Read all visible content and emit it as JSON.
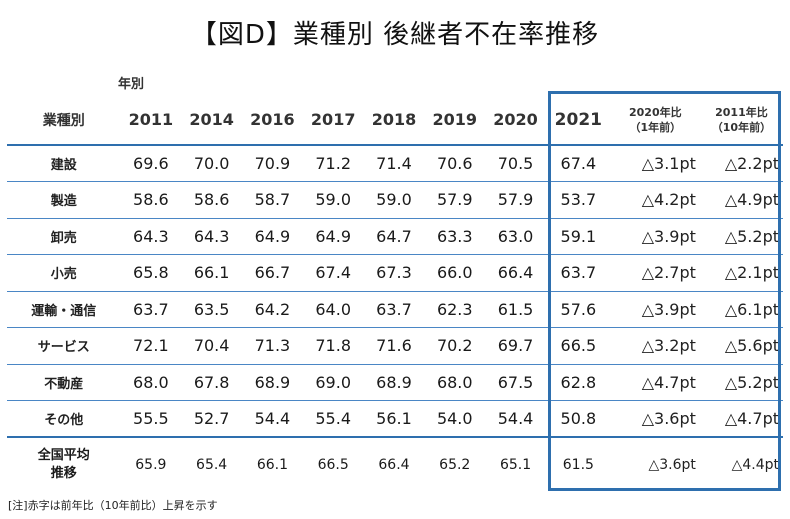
{
  "title": "【図D】業種別 後継者不在率推移",
  "year_label": "年別",
  "header": {
    "industry": "業種別",
    "years": [
      "2011",
      "2014",
      "2016",
      "2017",
      "2018",
      "2019",
      "2020"
    ],
    "current": "2021",
    "diff1_line1": "2020年比",
    "diff1_line2": "（1年前）",
    "diff2_line1": "2011年比",
    "diff2_line2": "（10年前）"
  },
  "rows": [
    {
      "name": "建設",
      "values": [
        "69.6",
        "70.0",
        "70.9",
        "71.2",
        "71.4",
        "70.6",
        "70.5"
      ],
      "current": "67.4",
      "d1": "△3.1pt",
      "d2": "△2.2pt"
    },
    {
      "name": "製造",
      "values": [
        "58.6",
        "58.6",
        "58.7",
        "59.0",
        "59.0",
        "57.9",
        "57.9"
      ],
      "current": "53.7",
      "d1": "△4.2pt",
      "d2": "△4.9pt"
    },
    {
      "name": "卸売",
      "values": [
        "64.3",
        "64.3",
        "64.9",
        "64.9",
        "64.7",
        "63.3",
        "63.0"
      ],
      "current": "59.1",
      "d1": "△3.9pt",
      "d2": "△5.2pt"
    },
    {
      "name": "小売",
      "values": [
        "65.8",
        "66.1",
        "66.7",
        "67.4",
        "67.3",
        "66.0",
        "66.4"
      ],
      "current": "63.7",
      "d1": "△2.7pt",
      "d2": "△2.1pt"
    },
    {
      "name": "運輸・通信",
      "values": [
        "63.7",
        "63.5",
        "64.2",
        "64.0",
        "63.7",
        "62.3",
        "61.5"
      ],
      "current": "57.6",
      "d1": "△3.9pt",
      "d2": "△6.1pt"
    },
    {
      "name": "サービス",
      "values": [
        "72.1",
        "70.4",
        "71.3",
        "71.8",
        "71.6",
        "70.2",
        "69.7"
      ],
      "current": "66.5",
      "d1": "△3.2pt",
      "d2": "△5.6pt"
    },
    {
      "name": "不動産",
      "values": [
        "68.0",
        "67.8",
        "68.9",
        "69.0",
        "68.9",
        "68.0",
        "67.5"
      ],
      "current": "62.8",
      "d1": "△4.7pt",
      "d2": "△5.2pt"
    },
    {
      "name": "その他",
      "values": [
        "55.5",
        "52.7",
        "54.4",
        "55.4",
        "56.1",
        "54.0",
        "54.4"
      ],
      "current": "50.8",
      "d1": "△3.6pt",
      "d2": "△4.7pt"
    }
  ],
  "average": {
    "name_line1": "全国平均",
    "name_line2": "推移",
    "values": [
      "65.9",
      "65.4",
      "66.1",
      "66.5",
      "66.4",
      "65.2",
      "65.1"
    ],
    "current": "61.5",
    "d1": "△3.6pt",
    "d2": "△4.4pt"
  },
  "note": "[注]赤字は前年比（10年前比）上昇を示す",
  "colors": {
    "border": "#2e6fae",
    "row_line": "#4a86c5"
  }
}
